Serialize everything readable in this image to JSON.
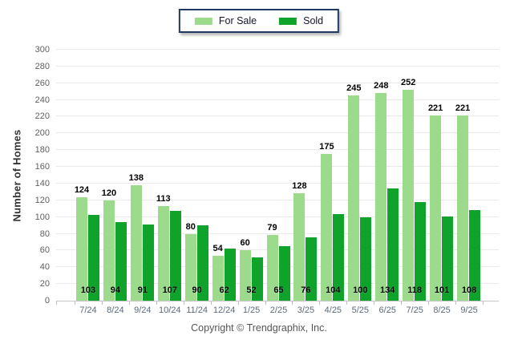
{
  "chart_data": {
    "type": "bar",
    "title": "",
    "xlabel": "",
    "ylabel": "Number of Homes",
    "categories": [
      "7/24",
      "8/24",
      "9/24",
      "10/24",
      "11/24",
      "12/24",
      "1/25",
      "2/25",
      "3/25",
      "4/25",
      "5/25",
      "6/25",
      "7/25",
      "8/25",
      "9/25"
    ],
    "series": [
      {
        "name": "For Sale",
        "color": "#9CDB8C",
        "values": [
          124,
          120,
          138,
          113,
          80,
          54,
          60,
          79,
          128,
          175,
          245,
          248,
          252,
          221,
          221
        ],
        "value_label_position": "above-bar"
      },
      {
        "name": "Sold",
        "color": "#0FA32C",
        "values": [
          103,
          94,
          91,
          107,
          90,
          62,
          52,
          65,
          76,
          104,
          100,
          134,
          118,
          101,
          108
        ],
        "value_label_position": "inside-bottom"
      }
    ],
    "ylim": [
      0,
      300
    ],
    "ytick_step": 20,
    "grid": true,
    "legend_position": "top-center"
  },
  "legend": {
    "items": [
      {
        "label": "For Sale",
        "color": "#9CDB8C"
      },
      {
        "label": "Sold",
        "color": "#0FA32C"
      }
    ],
    "border_color": "#1F3864"
  },
  "footer": {
    "copyright": "Copyright © Trendgraphix, Inc."
  }
}
